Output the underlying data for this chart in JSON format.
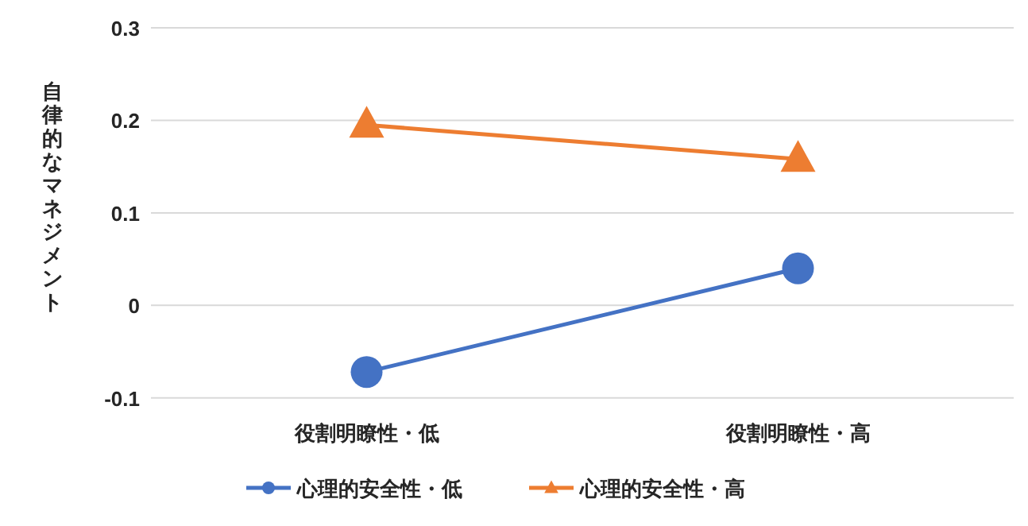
{
  "chart_data": {
    "type": "line",
    "ylabel": "自律的なマネジメント",
    "categories": [
      "役割明瞭性・低",
      "役割明瞭性・高"
    ],
    "series": [
      {
        "name": "心理的安全性・低",
        "color": "#4472c4",
        "marker": "circle",
        "values": [
          -0.072,
          0.04
        ]
      },
      {
        "name": "心理的安全性・高",
        "color": "#ed7d31",
        "marker": "triangle",
        "values": [
          0.195,
          0.158
        ]
      }
    ],
    "ylim": [
      -0.1,
      0.3
    ],
    "yticks": [
      -0.1,
      0,
      0.1,
      0.2,
      0.3
    ],
    "grid": "y",
    "legend": "bottom"
  }
}
